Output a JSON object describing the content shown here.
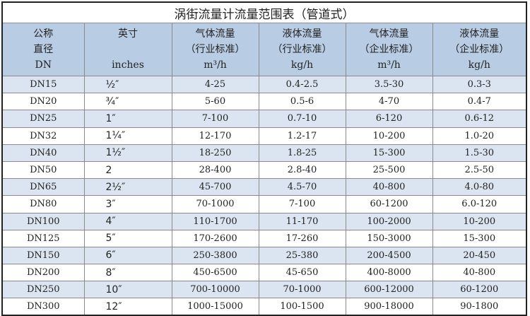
{
  "title": "涡街流量计流量范围表（管道式）",
  "headers": [
    {
      "l1": "公称",
      "l2": "直径",
      "l3": "DN"
    },
    {
      "l1": "英寸",
      "l2": "",
      "l3": "inches"
    },
    {
      "l1": "气体流量",
      "l2": "（行业标准）",
      "l3": "m³/h"
    },
    {
      "l1": "液体流量",
      "l2": "（行业标准）",
      "l3": "kg/h"
    },
    {
      "l1": "气体流量",
      "l2": "（企业标准）",
      "l3": "m³/h"
    },
    {
      "l1": "液体流量",
      "l2": "（企业标准）",
      "l3": "kg/h"
    }
  ],
  "rows": [
    [
      "DN15",
      "½″",
      "4-25",
      "0.4-2.5",
      "3.5-30",
      "0.3-3"
    ],
    [
      "DN20",
      "¾″",
      "5-60",
      "0.5-6",
      "4-70",
      "0.4-7"
    ],
    [
      "DN25",
      "1″",
      "7-100",
      "0.7-10",
      "6-120",
      "0.6-12"
    ],
    [
      "DN32",
      "1¼″",
      "12-170",
      "1.2-17",
      "10-200",
      "1.0-20"
    ],
    [
      "DN40",
      "1½″",
      "18-250",
      "1.8-25",
      "15-300",
      "1.5-30"
    ],
    [
      "DN50",
      "2",
      "28-400",
      "2.8-40",
      "25-500",
      "2.5-50"
    ],
    [
      "DN65",
      "2½″",
      "45-700",
      "4.5-70",
      "40-800",
      "4.0-80"
    ],
    [
      "DN80",
      "3″",
      "70-1000",
      "7-100",
      "60-1200",
      "6.0-120"
    ],
    [
      "DN100",
      "4″",
      "110-1700",
      "11-170",
      "100-2000",
      "10-200"
    ],
    [
      "DN125",
      "5″",
      "170-2600",
      "17-260",
      "150-3000",
      "15-300"
    ],
    [
      "DN150",
      "6″",
      "250-3800",
      "25-380",
      "200-4500",
      "20-450"
    ],
    [
      "DN200",
      "8″",
      "450-6500",
      "45-650",
      "400-8000",
      "40-800"
    ],
    [
      "DN250",
      "10″",
      "700-10000",
      "70-1000",
      "600-12000",
      "60-1200"
    ],
    [
      "DN300",
      "12″",
      "1000-15000",
      "100-1500",
      "900-18000",
      "90-1800"
    ]
  ]
}
